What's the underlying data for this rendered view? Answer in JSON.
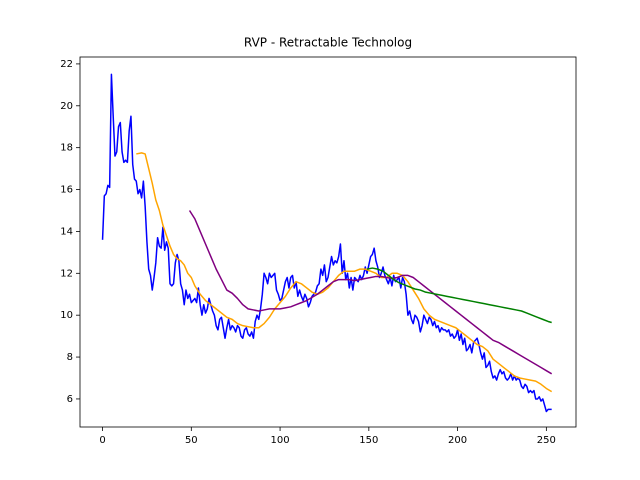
{
  "chart_data": {
    "type": "line",
    "title": "RVP - Retractable Technolog",
    "xlim": [
      -12.7,
      266.7
    ],
    "xticks": [
      0,
      50,
      100,
      150,
      200,
      250
    ],
    "ylim": [
      4.66,
      22.33
    ],
    "yticks": [
      6,
      8,
      10,
      12,
      14,
      16,
      18,
      20,
      22
    ],
    "series": [
      {
        "color": "#0000ff",
        "x": [
          0,
          1,
          2,
          3,
          4,
          5,
          6,
          7,
          8,
          9,
          10,
          11,
          12,
          13,
          14,
          15,
          16,
          17,
          18,
          19,
          20,
          21,
          22,
          23,
          24,
          25,
          26,
          27,
          28,
          29,
          30,
          31,
          32,
          33,
          34,
          35,
          36,
          37,
          38,
          39,
          40,
          41,
          42,
          43,
          44,
          45,
          46,
          47,
          48,
          49,
          50,
          51,
          52,
          53,
          54,
          55,
          56,
          57,
          58,
          59,
          60,
          61,
          62,
          63,
          64,
          65,
          66,
          67,
          68,
          69,
          70,
          71,
          72,
          73,
          74,
          75,
          76,
          77,
          78,
          79,
          80,
          81,
          82,
          83,
          84,
          85,
          86,
          87,
          88,
          89,
          90,
          91,
          92,
          93,
          94,
          95,
          96,
          97,
          98,
          99,
          100,
          101,
          102,
          103,
          104,
          105,
          106,
          107,
          108,
          109,
          110,
          111,
          112,
          113,
          114,
          115,
          116,
          117,
          118,
          119,
          120,
          121,
          122,
          123,
          124,
          125,
          126,
          127,
          128,
          129,
          130,
          131,
          132,
          133,
          134,
          135,
          136,
          137,
          138,
          139,
          140,
          141,
          142,
          143,
          144,
          145,
          146,
          147,
          148,
          149,
          150,
          151,
          152,
          153,
          154,
          155,
          156,
          157,
          158,
          159,
          160,
          161,
          162,
          163,
          164,
          165,
          166,
          167,
          168,
          169,
          170,
          171,
          172,
          173,
          174,
          175,
          176,
          177,
          178,
          179,
          180,
          181,
          182,
          183,
          184,
          185,
          186,
          187,
          188,
          189,
          190,
          191,
          192,
          193,
          194,
          195,
          196,
          197,
          198,
          199,
          200,
          201,
          202,
          203,
          204,
          205,
          206,
          207,
          208,
          209,
          210,
          211,
          212,
          213,
          214,
          215,
          216,
          217,
          218,
          219,
          220,
          221,
          222,
          223,
          224,
          225,
          226,
          227,
          228,
          229,
          230,
          231,
          232,
          233,
          234,
          235,
          236,
          237,
          238,
          239,
          240,
          241,
          242,
          243,
          244,
          245,
          246,
          247,
          248,
          249,
          250,
          251,
          252,
          253
        ],
        "values": [
          13.6,
          15.7,
          15.8,
          16.2,
          16.1,
          21.5,
          19.5,
          17.6,
          17.8,
          19.0,
          19.2,
          17.8,
          17.3,
          17.4,
          17.3,
          18.8,
          19.5,
          17.2,
          16.5,
          16.4,
          15.8,
          16.0,
          15.6,
          16.4,
          15.2,
          13.5,
          12.2,
          11.9,
          11.2,
          11.8,
          12.5,
          13.7,
          13.3,
          13.2,
          14.2,
          13.1,
          13.5,
          13.2,
          11.5,
          11.4,
          11.5,
          12.5,
          12.9,
          12.6,
          11.5,
          11.2,
          10.5,
          11.2,
          10.8,
          11.0,
          10.6,
          10.7,
          10.8,
          10.6,
          11.3,
          10.5,
          10.0,
          10.5,
          10.1,
          10.3,
          10.8,
          10.5,
          10.2,
          10.0,
          9.5,
          9.3,
          9.8,
          9.9,
          9.4,
          8.9,
          9.4,
          9.8,
          9.3,
          9.5,
          9.4,
          9.2,
          9.5,
          9.4,
          9.0,
          8.9,
          9.3,
          9.4,
          9.1,
          9.0,
          9.2,
          8.9,
          9.7,
          10.0,
          9.8,
          10.3,
          11.0,
          12.0,
          11.8,
          11.5,
          12.0,
          11.8,
          11.9,
          12.0,
          11.2,
          11.0,
          10.7,
          10.8,
          11.2,
          11.6,
          11.8,
          11.3,
          11.8,
          11.9,
          11.3,
          11.6,
          10.9,
          11.2,
          10.9,
          10.7,
          11.0,
          10.8,
          10.4,
          10.6,
          10.9,
          11.0,
          11.1,
          11.4,
          11.5,
          12.2,
          11.9,
          12.4,
          11.6,
          11.8,
          12.3,
          12.8,
          12.4,
          12.6,
          12.5,
          12.8,
          13.4,
          12.0,
          12.6,
          11.7,
          12.0,
          11.3,
          11.8,
          11.2,
          11.8,
          11.7,
          11.6,
          11.9,
          11.7,
          11.9,
          12.3,
          12.0,
          12.4,
          12.8,
          12.9,
          13.2,
          12.6,
          12.3,
          11.8,
          12.0,
          12.3,
          11.9,
          11.7,
          11.5,
          11.8,
          11.4,
          11.9,
          11.6,
          11.7,
          11.8,
          11.3,
          11.8,
          11.6,
          11.0,
          10.0,
          10.2,
          9.8,
          9.6,
          10.0,
          9.9,
          9.7,
          9.2,
          9.5,
          10.0,
          9.8,
          9.6,
          9.9,
          9.8,
          9.5,
          9.7,
          9.4,
          9.5,
          9.2,
          9.4,
          9.3,
          9.3,
          9.2,
          9.3,
          9.0,
          9.1,
          8.9,
          9.0,
          9.3,
          8.8,
          9.1,
          8.6,
          8.9,
          8.3,
          8.4,
          8.6,
          8.2,
          8.7,
          8.8,
          8.9,
          8.6,
          8.2,
          7.9,
          8.2,
          7.5,
          7.6,
          7.8,
          7.3,
          7.0,
          7.1,
          6.9,
          7.2,
          7.4,
          7.2,
          7.3,
          7.0,
          6.9,
          7.0,
          7.2,
          6.9,
          7.1,
          6.9,
          7.0,
          6.9,
          6.6,
          6.5,
          6.7,
          6.6,
          6.3,
          6.4,
          6.3,
          6.4,
          6.0,
          6.0,
          6.1,
          5.9,
          6.0,
          5.7,
          5.4,
          5.5,
          5.5,
          5.5
        ]
      },
      {
        "color": "#ffa500",
        "x": [
          19,
          22,
          24,
          26,
          28,
          30,
          32,
          34,
          36,
          38,
          40,
          42,
          44,
          46,
          48,
          50,
          52,
          55,
          58,
          61,
          64,
          67,
          70,
          73,
          76,
          79,
          82,
          85,
          88,
          91,
          94,
          97,
          100,
          103,
          106,
          109,
          112,
          115,
          118,
          121,
          124,
          127,
          130,
          133,
          136,
          139,
          142,
          145,
          148,
          151,
          154,
          157,
          160,
          163,
          166,
          169,
          172,
          175,
          178,
          181,
          184,
          187,
          190,
          193,
          196,
          199,
          202,
          205,
          208,
          211,
          214,
          217,
          220,
          223,
          226,
          229,
          232,
          235,
          238,
          241,
          244,
          247,
          250,
          253
        ],
        "values": [
          17.7,
          17.75,
          17.7,
          17.0,
          16.3,
          15.5,
          15.0,
          14.3,
          13.8,
          13.3,
          12.9,
          12.7,
          12.6,
          12.4,
          12.0,
          11.8,
          11.4,
          11.0,
          10.7,
          10.5,
          10.3,
          10.1,
          9.9,
          9.8,
          9.6,
          9.5,
          9.45,
          9.4,
          9.4,
          9.6,
          9.9,
          10.3,
          10.6,
          10.9,
          11.3,
          11.6,
          11.5,
          11.3,
          11.1,
          11.0,
          11.1,
          11.3,
          11.6,
          11.9,
          12.1,
          12.1,
          12.1,
          12.2,
          12.2,
          12.1,
          12.0,
          11.8,
          11.8,
          12.0,
          12.0,
          11.9,
          11.6,
          11.2,
          10.8,
          10.3,
          10.0,
          9.8,
          9.7,
          9.6,
          9.5,
          9.4,
          9.2,
          9.0,
          8.8,
          8.6,
          8.5,
          8.3,
          7.9,
          7.7,
          7.5,
          7.3,
          7.1,
          7.0,
          6.95,
          6.9,
          6.85,
          6.7,
          6.5,
          6.35
        ]
      },
      {
        "color": "#800080",
        "x": [
          49,
          52,
          55,
          58,
          61,
          64,
          67,
          70,
          73,
          76,
          79,
          82,
          85,
          88,
          91,
          94,
          97,
          100,
          103,
          106,
          109,
          112,
          115,
          118,
          121,
          124,
          127,
          130,
          133,
          136,
          139,
          142,
          145,
          148,
          151,
          154,
          157,
          160,
          163,
          166,
          169,
          172,
          175,
          178,
          181,
          184,
          187,
          190,
          193,
          196,
          199,
          202,
          205,
          208,
          211,
          214,
          217,
          220,
          223,
          226,
          229,
          232,
          235,
          238,
          241,
          244,
          247,
          250,
          253
        ],
        "values": [
          15.0,
          14.6,
          14.0,
          13.4,
          12.8,
          12.2,
          11.7,
          11.2,
          11.05,
          10.8,
          10.5,
          10.3,
          10.25,
          10.2,
          10.25,
          10.3,
          10.3,
          10.3,
          10.35,
          10.4,
          10.5,
          10.6,
          10.7,
          10.85,
          11.0,
          11.2,
          11.4,
          11.6,
          11.7,
          11.7,
          11.7,
          11.65,
          11.7,
          11.75,
          11.8,
          11.85,
          11.85,
          11.8,
          11.75,
          11.8,
          11.9,
          11.9,
          11.8,
          11.6,
          11.4,
          11.2,
          11.0,
          10.8,
          10.6,
          10.4,
          10.2,
          10.0,
          9.8,
          9.6,
          9.4,
          9.2,
          9.0,
          8.8,
          8.7,
          8.55,
          8.4,
          8.25,
          8.1,
          7.95,
          7.8,
          7.65,
          7.5,
          7.35,
          7.2
        ]
      },
      {
        "color": "#008000",
        "x": [
          149,
          152,
          155,
          158,
          161,
          164,
          167,
          170,
          173,
          176,
          179,
          182,
          185,
          188,
          191,
          194,
          197,
          200,
          203,
          206,
          209,
          212,
          215,
          218,
          221,
          224,
          227,
          230,
          233,
          236,
          239,
          242,
          245,
          248,
          251,
          253
        ],
        "values": [
          12.2,
          12.25,
          12.2,
          12.1,
          11.9,
          11.7,
          11.55,
          11.45,
          11.35,
          11.25,
          11.2,
          11.1,
          11.05,
          11.0,
          10.95,
          10.9,
          10.85,
          10.8,
          10.75,
          10.7,
          10.65,
          10.6,
          10.55,
          10.5,
          10.45,
          10.4,
          10.35,
          10.3,
          10.25,
          10.2,
          10.1,
          10.0,
          9.9,
          9.8,
          9.7,
          9.65
        ]
      }
    ]
  }
}
